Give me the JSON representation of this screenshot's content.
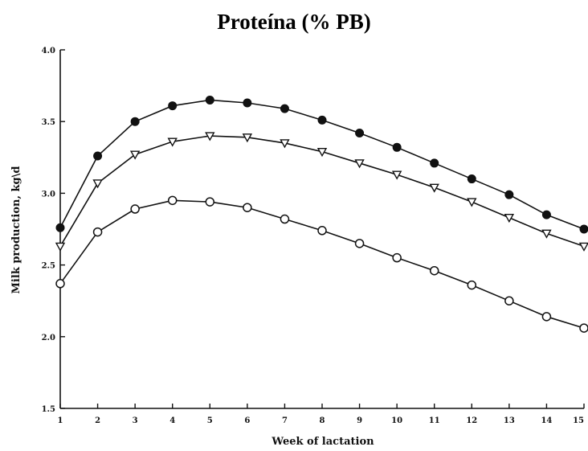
{
  "chart_data": {
    "type": "line",
    "title": "Proteína (% PB)",
    "xlabel": "Week of lactation",
    "ylabel": "Milk production, kg\\d",
    "x": [
      1,
      2,
      3,
      4,
      5,
      6,
      7,
      8,
      9,
      10,
      11,
      12,
      13,
      14,
      15
    ],
    "xlim": [
      1,
      15
    ],
    "ylim": [
      1.5,
      4.0
    ],
    "yticks": [
      "1.5",
      "2.0",
      "2.5",
      "3.0",
      "3.5",
      "4.0"
    ],
    "xticks": [
      "1",
      "2",
      "3",
      "4",
      "5",
      "6",
      "7",
      "8",
      "9",
      "10",
      "11",
      "12",
      "13",
      "14",
      "15"
    ],
    "grid": false,
    "series": [
      {
        "marker": "filled-circle",
        "values": [
          2.76,
          3.26,
          3.5,
          3.61,
          3.65,
          3.63,
          3.59,
          3.51,
          3.42,
          3.32,
          3.21,
          3.1,
          2.99,
          2.85,
          2.75
        ]
      },
      {
        "marker": "open-triangle-down",
        "values": [
          2.63,
          3.07,
          3.27,
          3.36,
          3.4,
          3.39,
          3.35,
          3.29,
          3.21,
          3.13,
          3.04,
          2.94,
          2.83,
          2.72,
          2.63
        ]
      },
      {
        "marker": "open-circle",
        "values": [
          2.37,
          2.73,
          2.89,
          2.95,
          2.94,
          2.9,
          2.82,
          2.74,
          2.65,
          2.55,
          2.46,
          2.36,
          2.25,
          2.14,
          2.06
        ]
      }
    ]
  }
}
